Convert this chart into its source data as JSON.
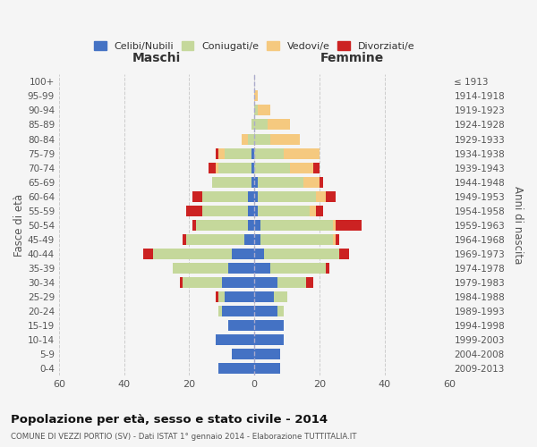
{
  "age_groups": [
    "0-4",
    "5-9",
    "10-14",
    "15-19",
    "20-24",
    "25-29",
    "30-34",
    "35-39",
    "40-44",
    "45-49",
    "50-54",
    "55-59",
    "60-64",
    "65-69",
    "70-74",
    "75-79",
    "80-84",
    "85-89",
    "90-94",
    "95-99",
    "100+"
  ],
  "birth_years": [
    "2009-2013",
    "2004-2008",
    "1999-2003",
    "1994-1998",
    "1989-1993",
    "1984-1988",
    "1979-1983",
    "1974-1978",
    "1969-1973",
    "1964-1968",
    "1959-1963",
    "1954-1958",
    "1949-1953",
    "1944-1948",
    "1939-1943",
    "1934-1938",
    "1929-1933",
    "1924-1928",
    "1919-1923",
    "1914-1918",
    "≤ 1913"
  ],
  "males": {
    "celibi": [
      11,
      7,
      12,
      8,
      10,
      9,
      10,
      8,
      7,
      3,
      2,
      2,
      2,
      1,
      1,
      1,
      0,
      0,
      0,
      0,
      0
    ],
    "coniugati": [
      0,
      0,
      0,
      0,
      1,
      2,
      12,
      17,
      24,
      18,
      16,
      14,
      14,
      12,
      10,
      8,
      2,
      1,
      0,
      0,
      0
    ],
    "vedovi": [
      0,
      0,
      0,
      0,
      0,
      0,
      0,
      0,
      0,
      0,
      0,
      0,
      0,
      0,
      1,
      2,
      2,
      0,
      0,
      0,
      0
    ],
    "divorziati": [
      0,
      0,
      0,
      0,
      0,
      1,
      1,
      0,
      3,
      1,
      1,
      5,
      3,
      0,
      2,
      1,
      0,
      0,
      0,
      0,
      0
    ]
  },
  "females": {
    "nubili": [
      8,
      8,
      9,
      9,
      7,
      6,
      7,
      5,
      3,
      2,
      2,
      1,
      1,
      1,
      0,
      0,
      0,
      0,
      0,
      0,
      0
    ],
    "coniugate": [
      0,
      0,
      0,
      0,
      2,
      4,
      9,
      17,
      23,
      22,
      22,
      16,
      18,
      14,
      11,
      9,
      5,
      4,
      1,
      0,
      0
    ],
    "vedove": [
      0,
      0,
      0,
      0,
      0,
      0,
      0,
      0,
      0,
      1,
      1,
      2,
      3,
      5,
      7,
      11,
      9,
      7,
      4,
      1,
      0
    ],
    "divorziate": [
      0,
      0,
      0,
      0,
      0,
      0,
      2,
      1,
      3,
      1,
      8,
      2,
      3,
      1,
      2,
      0,
      0,
      0,
      0,
      0,
      0
    ]
  },
  "colors": {
    "celibi": "#4472c4",
    "coniugati": "#c5d89b",
    "vedovi": "#f5c97f",
    "divorziati": "#cc2222"
  },
  "xlim": 60,
  "title": "Popolazione per età, sesso e stato civile - 2014",
  "subtitle": "COMUNE DI VEZZI PORTIO (SV) - Dati ISTAT 1° gennaio 2014 - Elaborazione TUTTITALIA.IT",
  "ylabel_left": "Fasce di età",
  "ylabel_right": "Anni di nascita",
  "xlabel_left": "Maschi",
  "xlabel_right": "Femmine",
  "legend_labels": [
    "Celibi/Nubili",
    "Coniugati/e",
    "Vedovi/e",
    "Divorziati/e"
  ],
  "background_color": "#f5f5f5"
}
